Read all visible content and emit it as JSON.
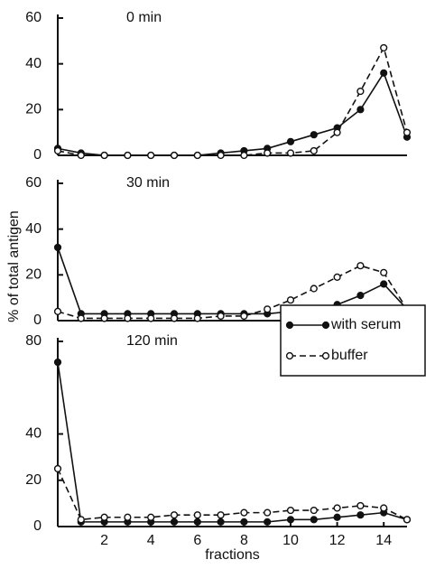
{
  "chart_data": [
    {
      "type": "line",
      "title": "0 min",
      "x": [
        0,
        1,
        2,
        3,
        4,
        5,
        6,
        7,
        8,
        9,
        10,
        11,
        12,
        13,
        14,
        15
      ],
      "series": [
        {
          "color": "#111111",
          "linestyle": "solid",
          "marker": "filled",
          "values": [
            3,
            1,
            0,
            0,
            0,
            0,
            0,
            1,
            2,
            3,
            6,
            9,
            12,
            20,
            36,
            8
          ]
        },
        {
          "color": "#111111",
          "linestyle": "dashed",
          "marker": "open",
          "values": [
            2,
            0,
            0,
            0,
            0,
            0,
            0,
            0,
            0,
            1,
            1,
            2,
            10,
            28,
            47,
            10
          ]
        }
      ],
      "xlim": [
        0,
        15
      ],
      "ylim": [
        0,
        60
      ],
      "yticks": [
        0,
        20,
        40,
        60
      ]
    },
    {
      "type": "line",
      "title": "30 min",
      "ylabel": "% of total antigen",
      "x": [
        0,
        1,
        2,
        3,
        4,
        5,
        6,
        7,
        8,
        9,
        10,
        11,
        12,
        13,
        14,
        15
      ],
      "series": [
        {
          "color": "#111111",
          "linestyle": "solid",
          "marker": "filled",
          "values": [
            32,
            3,
            3,
            3,
            3,
            3,
            3,
            3,
            3,
            3,
            4,
            5,
            7,
            11,
            16,
            5
          ]
        },
        {
          "color": "#111111",
          "linestyle": "dashed",
          "marker": "open",
          "values": [
            4,
            1,
            1,
            1,
            1,
            1,
            1,
            2,
            2,
            5,
            9,
            14,
            19,
            24,
            21,
            5
          ]
        }
      ],
      "xlim": [
        0,
        15
      ],
      "ylim": [
        0,
        60
      ],
      "yticks": [
        0,
        20,
        40,
        60
      ]
    },
    {
      "type": "line",
      "title": "120 min",
      "xlabel": "fractions",
      "x": [
        0,
        1,
        2,
        3,
        4,
        5,
        6,
        7,
        8,
        9,
        10,
        11,
        12,
        13,
        14,
        15
      ],
      "series": [
        {
          "name": "with serum",
          "color": "#111111",
          "linestyle": "solid",
          "marker": "filled",
          "values": [
            71,
            2,
            2,
            2,
            2,
            2,
            2,
            2,
            2,
            2,
            3,
            3,
            4,
            5,
            6,
            3
          ]
        },
        {
          "name": "buffer",
          "color": "#111111",
          "linestyle": "dashed",
          "marker": "open",
          "values": [
            25,
            3,
            4,
            4,
            4,
            5,
            5,
            5,
            6,
            6,
            7,
            7,
            8,
            9,
            8,
            3
          ]
        }
      ],
      "xlim": [
        0,
        15
      ],
      "ylim": [
        0,
        80
      ],
      "yticks": [
        0,
        20,
        40,
        80
      ],
      "xticks": [
        2,
        4,
        6,
        8,
        10,
        12,
        14
      ],
      "legend": "upper right"
    }
  ]
}
